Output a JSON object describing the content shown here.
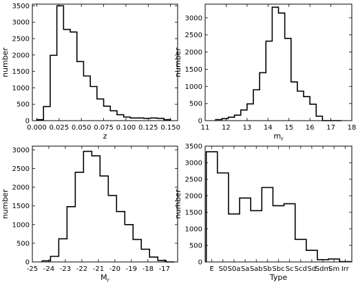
{
  "chart_data": [
    {
      "type": "histogram",
      "xlabel": "z",
      "ylabel": "number",
      "xlim": [
        -0.005,
        0.158
      ],
      "ylim": [
        0,
        3550
      ],
      "xticks": [
        0.0,
        0.025,
        0.05,
        0.075,
        0.1,
        0.125,
        0.15
      ],
      "xtick_labels": [
        "0.000",
        "0.025",
        "0.050",
        "0.075",
        "0.100",
        "0.125",
        "0.150"
      ],
      "yticks": [
        0,
        500,
        1000,
        1500,
        2000,
        2500,
        3000,
        3500
      ],
      "ytick_labels": [
        "0",
        "500",
        "1000",
        "1500",
        "2000",
        "2500",
        "3000",
        "3500"
      ],
      "bin_edges": [
        0.0,
        0.0075,
        0.015,
        0.0225,
        0.03,
        0.0375,
        0.045,
        0.0525,
        0.06,
        0.0675,
        0.075,
        0.0825,
        0.09,
        0.0975,
        0.105,
        0.1125,
        0.12,
        0.1275,
        0.135,
        0.1425,
        0.15
      ],
      "counts": [
        30,
        430,
        1990,
        3500,
        2780,
        2700,
        1800,
        1360,
        1040,
        660,
        440,
        300,
        180,
        110,
        80,
        80,
        70,
        80,
        70,
        30
      ]
    },
    {
      "type": "histogram",
      "xlabel": "m_r",
      "ylabel": "number",
      "xlim": [
        11,
        18
      ],
      "ylim": [
        0,
        3400
      ],
      "xticks": [
        11,
        12,
        13,
        14,
        15,
        16,
        17,
        18
      ],
      "xtick_labels": [
        "11",
        "12",
        "13",
        "14",
        "15",
        "16",
        "17",
        "18"
      ],
      "yticks": [
        0,
        500,
        1000,
        1500,
        2000,
        2500,
        3000
      ],
      "ytick_labels": [
        "0",
        "500",
        "1000",
        "1500",
        "2000",
        "2500",
        "3000"
      ],
      "bin_edges": [
        11.5,
        11.8,
        12.1,
        12.4,
        12.7,
        13.0,
        13.3,
        13.6,
        13.9,
        14.2,
        14.5,
        14.8,
        15.1,
        15.4,
        15.7,
        16.0,
        16.3,
        16.6,
        16.9,
        17.2,
        17.5
      ],
      "counts": [
        30,
        60,
        100,
        160,
        310,
        490,
        900,
        1400,
        2320,
        3310,
        3140,
        2400,
        1130,
        860,
        700,
        480,
        130,
        0,
        0,
        0
      ]
    },
    {
      "type": "histogram",
      "xlabel": "M_r",
      "ylabel": "number",
      "xlim": [
        -25,
        -16.2
      ],
      "ylim": [
        0,
        3100
      ],
      "xticks": [
        -25,
        -24,
        -23,
        -22,
        -21,
        -20,
        -19,
        -18,
        -17
      ],
      "xtick_labels": [
        "-25",
        "-24",
        "-23",
        "-22",
        "-21",
        "-20",
        "-19",
        "-18",
        "-17"
      ],
      "yticks": [
        0,
        500,
        1000,
        1500,
        2000,
        2500,
        3000
      ],
      "ytick_labels": [
        "0",
        "500",
        "1000",
        "1500",
        "2000",
        "2500",
        "3000"
      ],
      "bin_edges": [
        -24.4,
        -23.9,
        -23.4,
        -22.9,
        -22.4,
        -21.9,
        -21.4,
        -20.9,
        -20.4,
        -19.9,
        -19.4,
        -18.9,
        -18.4,
        -17.9,
        -17.4,
        -16.9,
        -16.4
      ],
      "counts": [
        30,
        150,
        620,
        1480,
        2400,
        2960,
        2840,
        2300,
        1780,
        1350,
        1000,
        600,
        340,
        130,
        40,
        0
      ]
    },
    {
      "type": "histogram",
      "xlabel": "Type",
      "ylabel": "number",
      "ylim": [
        0,
        3500
      ],
      "categories": [
        "E",
        "S0",
        "S0a",
        "Sa",
        "Sab",
        "Sb",
        "Sbc",
        "Sc",
        "Scd",
        "Sd",
        "Sdm",
        "Sm",
        "Irr"
      ],
      "yticks": [
        0,
        500,
        1000,
        1500,
        2000,
        2500,
        3000,
        3500
      ],
      "ytick_labels": [
        "0",
        "500",
        "1000",
        "1500",
        "2000",
        "2500",
        "3000",
        "3500"
      ],
      "counts": [
        3330,
        2690,
        1450,
        1930,
        1550,
        2250,
        1700,
        1760,
        680,
        350,
        70,
        90,
        10
      ]
    }
  ]
}
